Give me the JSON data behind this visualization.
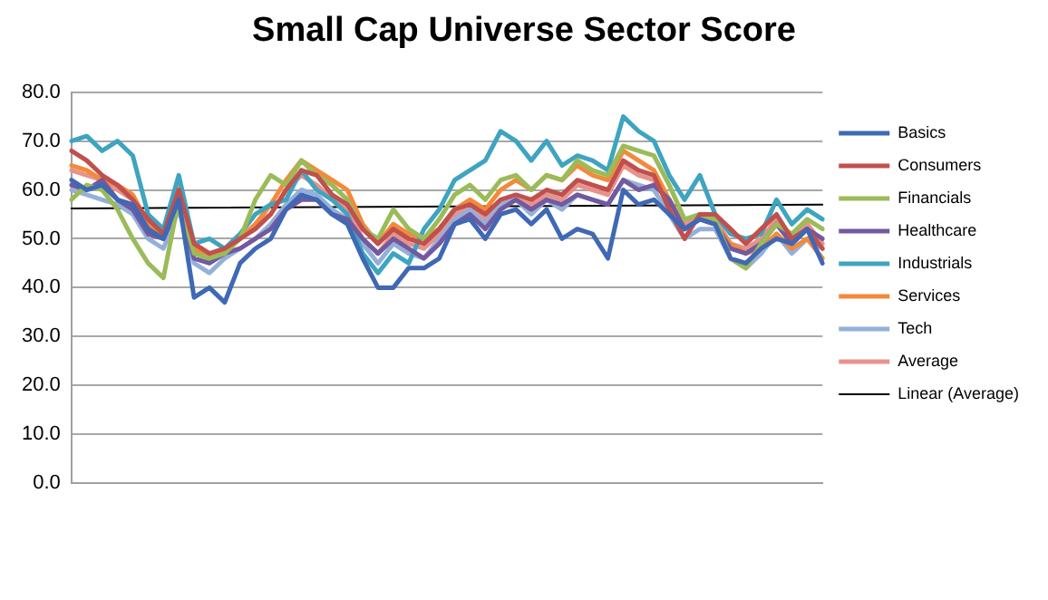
{
  "chart_data": {
    "type": "line",
    "title": "Small Cap Universe Sector Score",
    "categories": [
      null,
      null,
      null,
      null,
      null,
      null,
      null,
      null,
      null,
      null,
      null,
      null,
      null,
      null,
      null,
      null,
      null,
      null,
      null,
      null,
      null,
      null,
      null,
      null,
      null,
      null,
      null,
      null,
      null,
      null,
      null,
      null,
      null,
      null,
      null,
      null,
      null,
      null,
      null,
      null,
      null,
      null,
      null,
      null,
      null,
      null,
      null,
      null,
      null,
      null
    ],
    "ylim": [
      0,
      80
    ],
    "yticks": [
      {
        "value": 0,
        "label": "0.0"
      },
      {
        "value": 10,
        "label": "10.0"
      },
      {
        "value": 20,
        "label": "20.0"
      },
      {
        "value": 30,
        "label": "30.0"
      },
      {
        "value": 40,
        "label": "40.0"
      },
      {
        "value": 50,
        "label": "50.0"
      },
      {
        "value": 60,
        "label": "60.0"
      },
      {
        "value": 70,
        "label": "70.0"
      },
      {
        "value": 80,
        "label": "80.0"
      }
    ],
    "grid": "y",
    "legend": "right",
    "marker": "none",
    "line_style": "solid",
    "series": [
      {
        "name": "Basics",
        "color": "#3f68b5",
        "values": [
          62,
          60,
          61,
          58,
          57,
          52,
          50,
          58,
          38,
          40,
          37,
          45,
          48,
          50,
          56,
          59,
          58,
          55,
          53,
          46,
          40,
          40,
          44,
          44,
          46,
          53,
          54,
          50,
          55,
          56,
          53,
          56,
          50,
          52,
          51,
          46,
          60,
          57,
          58,
          55,
          52,
          54,
          53,
          46,
          45,
          48,
          50,
          49,
          52,
          45
        ]
      },
      {
        "name": "Consumers",
        "color": "#c0504d",
        "values": [
          68,
          66,
          63,
          61,
          58,
          54,
          51,
          60,
          49,
          47,
          48,
          50,
          52,
          55,
          60,
          64,
          63,
          59,
          57,
          52,
          49,
          52,
          50,
          49,
          52,
          56,
          57,
          55,
          58,
          59,
          58,
          60,
          59,
          62,
          61,
          60,
          66,
          64,
          63,
          56,
          50,
          55,
          55,
          52,
          49,
          52,
          55,
          50,
          52,
          48
        ]
      },
      {
        "name": "Financials",
        "color": "#9bbb59",
        "values": [
          58,
          61,
          60,
          56,
          50,
          45,
          42,
          58,
          47,
          46,
          47,
          50,
          58,
          63,
          61,
          66,
          63,
          61,
          58,
          52,
          50,
          56,
          52,
          50,
          54,
          59,
          61,
          58,
          62,
          63,
          60,
          63,
          62,
          66,
          64,
          63,
          69,
          68,
          67,
          61,
          54,
          55,
          54,
          46,
          44,
          49,
          53,
          51,
          54,
          52
        ]
      },
      {
        "name": "Healthcare",
        "color": "#7259a0",
        "values": [
          61,
          60,
          62,
          58,
          56,
          51,
          50,
          57,
          46,
          45,
          47,
          48,
          50,
          52,
          56,
          58,
          58,
          55,
          54,
          50,
          47,
          50,
          48,
          46,
          49,
          53,
          55,
          52,
          56,
          58,
          56,
          58,
          57,
          59,
          58,
          57,
          62,
          60,
          61,
          58,
          52,
          54,
          53,
          48,
          47,
          49,
          53,
          49,
          52,
          50
        ]
      },
      {
        "name": "Industrials",
        "color": "#3ea4c0",
        "values": [
          70,
          71,
          68,
          70,
          67,
          55,
          52,
          63,
          49,
          50,
          48,
          51,
          55,
          57,
          58,
          64,
          60,
          58,
          55,
          47,
          43,
          47,
          45,
          52,
          56,
          62,
          64,
          66,
          72,
          70,
          66,
          70,
          65,
          67,
          66,
          64,
          75,
          72,
          70,
          63,
          58,
          63,
          55,
          51,
          50,
          51,
          58,
          53,
          56,
          54
        ]
      },
      {
        "name": "Services",
        "color": "#f38a3a",
        "values": [
          65,
          64,
          62,
          61,
          59,
          53,
          50,
          60,
          48,
          46,
          48,
          50,
          53,
          57,
          62,
          66,
          64,
          62,
          60,
          53,
          49,
          53,
          51,
          50,
          52,
          56,
          58,
          56,
          60,
          62,
          60,
          63,
          62,
          65,
          63,
          62,
          68,
          66,
          64,
          58,
          52,
          54,
          53,
          49,
          47,
          48,
          51,
          48,
          50,
          46
        ]
      },
      {
        "name": "Tech",
        "color": "#95b0d8",
        "values": [
          60,
          59,
          58,
          57,
          55,
          50,
          48,
          56,
          45,
          43,
          46,
          48,
          50,
          53,
          57,
          60,
          59,
          56,
          54,
          49,
          45,
          49,
          47,
          46,
          50,
          54,
          56,
          53,
          57,
          58,
          55,
          58,
          56,
          59,
          58,
          57,
          62,
          61,
          60,
          55,
          50,
          52,
          52,
          46,
          44,
          47,
          51,
          47,
          50,
          48
        ]
      },
      {
        "name": "Average",
        "color": "#e8928c",
        "values": [
          64,
          63,
          62,
          60,
          58,
          52,
          50,
          61,
          47,
          46,
          48,
          50,
          53,
          55,
          60,
          63,
          61,
          58,
          56,
          50,
          47,
          51,
          49,
          48,
          51,
          55,
          56,
          54,
          57,
          58,
          57,
          59,
          58,
          61,
          60,
          59,
          65,
          63,
          62,
          58,
          53,
          55,
          54,
          49,
          48,
          50,
          54,
          50,
          53,
          49
        ]
      },
      {
        "name": "Linear (Average)",
        "type": "line",
        "color": "#000000",
        "values": [
          56.2,
          null,
          null,
          null,
          null,
          null,
          null,
          null,
          null,
          null,
          null,
          null,
          null,
          null,
          null,
          null,
          null,
          null,
          null,
          null,
          null,
          null,
          null,
          null,
          null,
          null,
          null,
          null,
          null,
          null,
          null,
          null,
          null,
          null,
          null,
          null,
          null,
          null,
          null,
          null,
          null,
          null,
          null,
          null,
          null,
          null,
          null,
          null,
          null,
          57.0
        ]
      }
    ]
  }
}
